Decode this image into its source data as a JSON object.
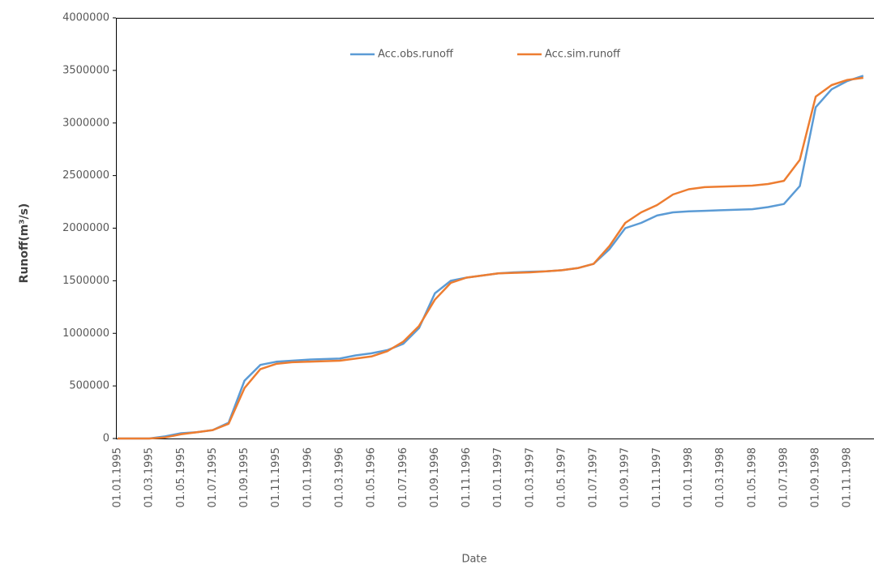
{
  "chart_data": {
    "type": "line",
    "x_label": "Date",
    "y_label": "Runoff(m³/s)",
    "categories": [
      "01.01.1995",
      null,
      "01.03.1995",
      null,
      "01.05.1995",
      null,
      "01.07.1995",
      null,
      "01.09.1995",
      null,
      "01.11.1995",
      null,
      "01.01.1996",
      null,
      "01.03.1996",
      null,
      "01.05.1996",
      null,
      "01.07.1996",
      null,
      "01.09.1996",
      null,
      "01.11.1996",
      null,
      "01.01.1997",
      null,
      "01.03.1997",
      null,
      "01.05.1997",
      null,
      "01.07.1997",
      null,
      "01.09.1997",
      null,
      "01.11.1997",
      null,
      "01.01.1998",
      null,
      "01.03.1998",
      null,
      "01.05.1998",
      null,
      "01.07.1998",
      null,
      "01.09.1998",
      null,
      "01.11.1998",
      null
    ],
    "series": [
      {
        "name": "Acc.obs.runoff",
        "color": "#5b9bd5",
        "values": [
          0,
          0,
          0,
          20000,
          50000,
          60000,
          80000,
          150000,
          550000,
          700000,
          730000,
          740000,
          750000,
          755000,
          760000,
          790000,
          810000,
          840000,
          900000,
          1050000,
          1380000,
          1500000,
          1530000,
          1550000,
          1570000,
          1580000,
          1585000,
          1590000,
          1600000,
          1620000,
          1660000,
          1800000,
          2000000,
          2050000,
          2120000,
          2150000,
          2160000,
          2165000,
          2170000,
          2175000,
          2180000,
          2200000,
          2230000,
          2400000,
          3150000,
          3320000,
          3400000,
          3450000
        ]
      },
      {
        "name": "Acc.sim.runoff",
        "color": "#ed7d31",
        "values": [
          0,
          0,
          0,
          10000,
          40000,
          60000,
          80000,
          140000,
          480000,
          660000,
          710000,
          725000,
          730000,
          735000,
          740000,
          760000,
          780000,
          830000,
          920000,
          1070000,
          1320000,
          1480000,
          1530000,
          1550000,
          1570000,
          1575000,
          1580000,
          1590000,
          1600000,
          1620000,
          1660000,
          1830000,
          2050000,
          2150000,
          2220000,
          2320000,
          2370000,
          2390000,
          2395000,
          2400000,
          2405000,
          2420000,
          2450000,
          2650000,
          3250000,
          3360000,
          3410000,
          3430000
        ]
      }
    ],
    "ylim": [
      0,
      4000000
    ],
    "yticks": [
      0,
      500000,
      1000000,
      1500000,
      2000000,
      2500000,
      3000000,
      3500000,
      4000000
    ],
    "legend": "top"
  }
}
